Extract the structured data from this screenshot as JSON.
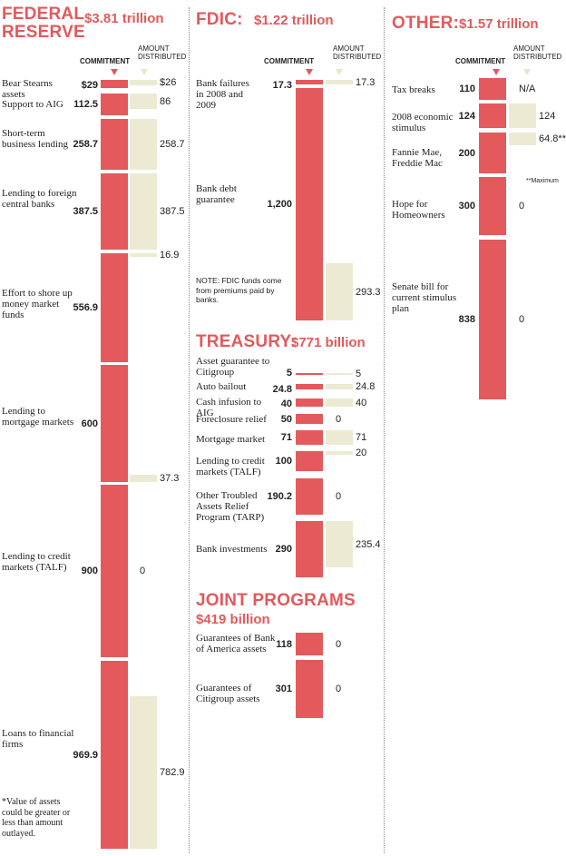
{
  "chart_data": [
    {
      "type": "bar",
      "title": "FEDERAL RESERVE",
      "total": "$3.81 trillion",
      "legend": {
        "commitment": "COMMITMENT",
        "distributed_line1": "AMOUNT",
        "distributed_line2": "DISTRIBUTED"
      },
      "footnote": "*Value of assets could be greater or less than amount outlayed.",
      "items": [
        {
          "label": "Bear Stearns assets",
          "commitment": 29,
          "commitment_label": "$29",
          "distributed": 26,
          "distributed_label": "$26"
        },
        {
          "label": "Support to AIG",
          "commitment": 112.5,
          "commitment_label": "112.5",
          "distributed": 86,
          "distributed_label": "86"
        },
        {
          "label": "Short-term business lending",
          "commitment": 258.7,
          "commitment_label": "258.7",
          "distributed": 258.7,
          "distributed_label": "258.7"
        },
        {
          "label": "Lending to foreign central banks",
          "commitment": 387.5,
          "commitment_label": "387.5",
          "distributed": 387.5,
          "distributed_label": "387.5"
        },
        {
          "label": "Effort to shore up money market funds",
          "commitment": 556.9,
          "commitment_label": "556.9",
          "distributed": 16.9,
          "distributed_label": "16.9"
        },
        {
          "label": "Lending to mortgage markets",
          "commitment": 600,
          "commitment_label": "600",
          "distributed": 37.3,
          "distributed_label": "37.3"
        },
        {
          "label": "Lending to credit markets (TALF)",
          "commitment": 900,
          "commitment_label": "900",
          "distributed": 0,
          "distributed_label": "0"
        },
        {
          "label": "Loans to financial firms",
          "commitment": 969.9,
          "commitment_label": "969.9",
          "distributed": 782.9,
          "distributed_label": "782.9"
        }
      ]
    },
    {
      "type": "bar",
      "title": "FDIC:",
      "total": "$1.22 trillion",
      "legend": {
        "commitment": "COMMITMENT",
        "distributed_line1": "AMOUNT",
        "distributed_line2": "DISTRIBUTED"
      },
      "note": "NOTE: FDIC funds come from premiums paid by banks.",
      "items": [
        {
          "label": "Bank failures in 2008 and 2009",
          "commitment": 17.3,
          "commitment_label": "17.3",
          "distributed": 17.3,
          "distributed_label": "17.3"
        },
        {
          "label": "Bank debt guarantee",
          "commitment": 1200,
          "commitment_label": "1,200",
          "distributed": 293.3,
          "distributed_label": "293.3"
        }
      ]
    },
    {
      "type": "bar",
      "title": "TREASURY:",
      "total": "$771 billion",
      "items": [
        {
          "label": "Asset guarantee to Citigroup",
          "commitment": 5,
          "commitment_label": "5",
          "distributed": 5,
          "distributed_label": "5"
        },
        {
          "label": "Auto bailout",
          "commitment": 24.8,
          "commitment_label": "24.8",
          "distributed": 24.8,
          "distributed_label": "24.8"
        },
        {
          "label": "Cash infusion to AIG",
          "commitment": 40,
          "commitment_label": "40",
          "distributed": 40,
          "distributed_label": "40"
        },
        {
          "label": "Foreclosure relief",
          "commitment": 50,
          "commitment_label": "50",
          "distributed": 0,
          "distributed_label": "0"
        },
        {
          "label": "Mortgage market",
          "commitment": 71,
          "commitment_label": "71",
          "distributed": 71,
          "distributed_label": "71"
        },
        {
          "label": "Lending to credit markets (TALF)",
          "commitment": 100,
          "commitment_label": "100",
          "distributed": 20,
          "distributed_label": "20"
        },
        {
          "label": "Other Troubled Assets Relief Program (TARP)",
          "commitment": 190.2,
          "commitment_label": "190.2",
          "distributed": 0,
          "distributed_label": "0"
        },
        {
          "label": "Bank investments",
          "commitment": 290,
          "commitment_label": "290",
          "distributed": 235.4,
          "distributed_label": "235.4"
        }
      ]
    },
    {
      "type": "bar",
      "title": "JOINT PROGRAMS",
      "total": "$419 billion",
      "items": [
        {
          "label": "Guarantees of Bank of America assets",
          "commitment": 118,
          "commitment_label": "118",
          "distributed": 0,
          "distributed_label": "0"
        },
        {
          "label": "Guarantees of Citigroup assets",
          "commitment": 301,
          "commitment_label": "301",
          "distributed": 0,
          "distributed_label": "0"
        }
      ]
    },
    {
      "type": "bar",
      "title": "OTHER:",
      "total": "$1.57 trillion",
      "legend": {
        "commitment": "COMMITMENT",
        "distributed_line1": "AMOUNT",
        "distributed_line2": "DISTRIBUTED"
      },
      "footnote": "**Maximum",
      "items": [
        {
          "label": "Tax breaks",
          "commitment": 110,
          "commitment_label": "110",
          "distributed": null,
          "distributed_label": "N/A"
        },
        {
          "label": "2008 economic stimulus",
          "commitment": 124,
          "commitment_label": "124",
          "distributed": 124,
          "distributed_label": "124"
        },
        {
          "label": "Fannie Mae, Freddie Mac",
          "commitment": 200,
          "commitment_label": "200",
          "distributed": 64.8,
          "distributed_label": "64.8**"
        },
        {
          "label": "Hope for Homeowners",
          "commitment": 300,
          "commitment_label": "300",
          "distributed": 0,
          "distributed_label": "0"
        },
        {
          "label": "Senate bill for current stimulus plan",
          "commitment": 838,
          "commitment_label": "838",
          "distributed": 0,
          "distributed_label": "0"
        }
      ]
    }
  ],
  "colors": {
    "commitment": "#e3595c",
    "distributed": "#ecead2",
    "heading": "#e3595c"
  }
}
